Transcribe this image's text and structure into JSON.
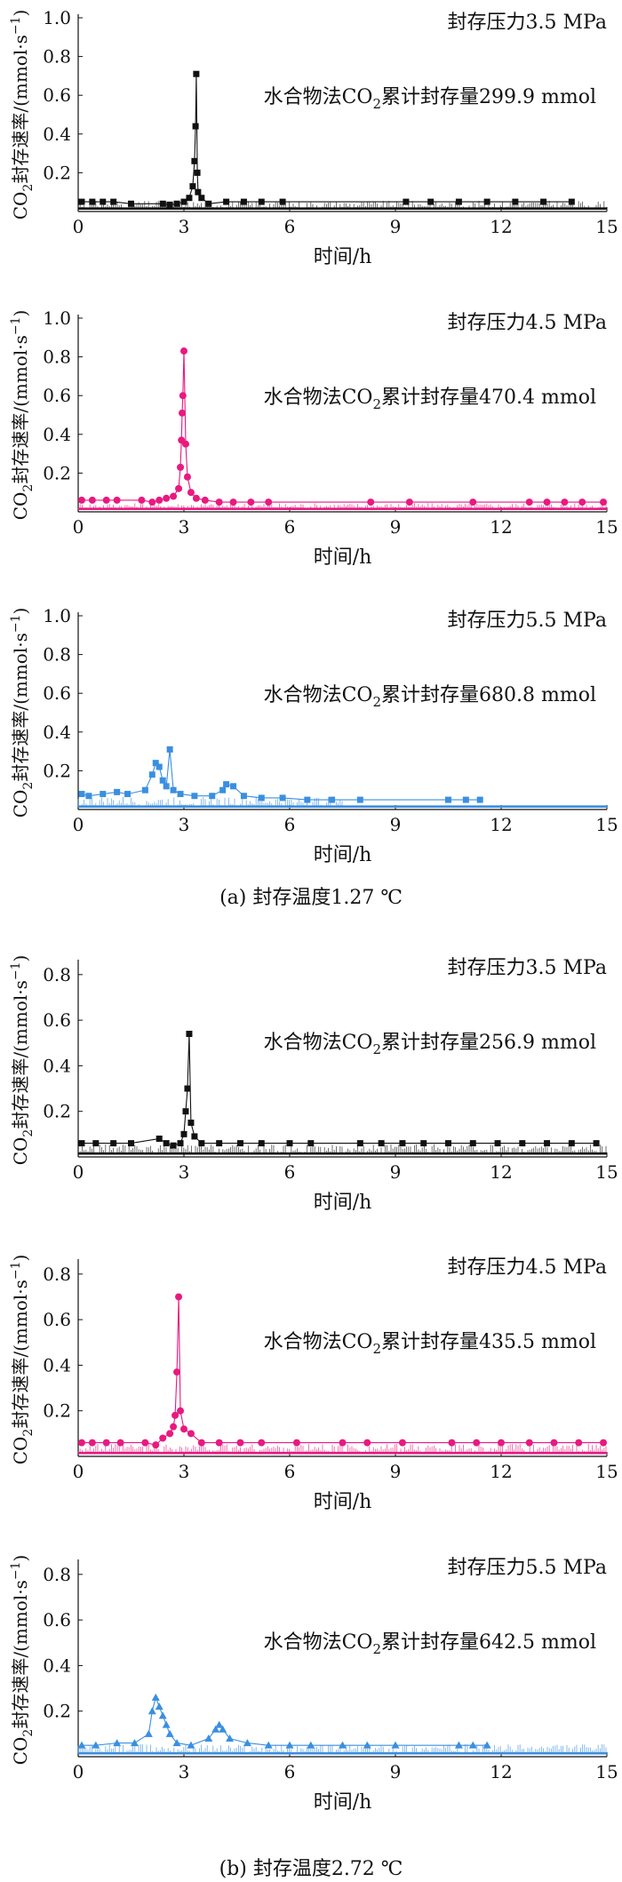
{
  "group_captions": [
    "(a) 封存温度1.27 ℃",
    "(b) 封存温度2.72 ℃"
  ],
  "colors": {
    "black": "#111111",
    "pink": "#e8197f",
    "blue": "#3a8fe0"
  },
  "chart_data": [
    {
      "type": "scatter",
      "group": "a",
      "marker": "square",
      "color": "#111111",
      "pressure_label": "封存压力3.5 MPa",
      "total_prefix": "水合物法CO",
      "total_sub": "2",
      "total_suffix": "累计封存量299.9 mmol",
      "xlabel": "时间/h",
      "ylabel_prefix": "CO",
      "ylabel_sub": "2",
      "ylabel_main": "封存速率/(mmol·s",
      "ylabel_sup": "−1",
      "ylabel_end": ")",
      "xlim": [
        0,
        15
      ],
      "ylim": [
        0,
        1.0
      ],
      "xticks": [
        0,
        3,
        6,
        9,
        12,
        15
      ],
      "yticks": [
        0.2,
        0.4,
        0.6,
        0.8,
        1.0
      ],
      "xtick_labels": [
        "0",
        "3",
        "6",
        "9",
        "12",
        "15"
      ],
      "ytick_labels": [
        "0.2",
        "0.4",
        "0.6",
        "0.8",
        "1.0"
      ],
      "series": [
        {
          "baseline": 0.015,
          "noise_level": 0.04,
          "noise_x": [
            [
              0,
              15
            ]
          ],
          "points": [
            [
              0.1,
              0.05
            ],
            [
              0.4,
              0.05
            ],
            [
              0.7,
              0.05
            ],
            [
              1.0,
              0.05
            ],
            [
              1.5,
              0.04
            ],
            [
              2.4,
              0.04
            ],
            [
              2.6,
              0.035
            ],
            [
              2.8,
              0.04
            ],
            [
              3.0,
              0.05
            ],
            [
              3.15,
              0.07
            ],
            [
              3.25,
              0.13
            ],
            [
              3.3,
              0.26
            ],
            [
              3.33,
              0.44
            ],
            [
              3.35,
              0.71
            ],
            [
              3.38,
              0.2
            ],
            [
              3.4,
              0.1
            ],
            [
              3.5,
              0.07
            ],
            [
              3.7,
              0.04
            ],
            [
              4.2,
              0.05
            ],
            [
              4.7,
              0.05
            ],
            [
              5.2,
              0.05
            ],
            [
              5.8,
              0.05
            ],
            [
              9.3,
              0.05
            ],
            [
              10.0,
              0.05
            ],
            [
              10.8,
              0.05
            ],
            [
              11.6,
              0.05
            ],
            [
              12.4,
              0.05
            ],
            [
              13.2,
              0.05
            ],
            [
              14.0,
              0.05
            ]
          ]
        }
      ]
    },
    {
      "type": "scatter",
      "group": "a",
      "marker": "circle",
      "color": "#e8197f",
      "pressure_label": "封存压力4.5 MPa",
      "total_prefix": "水合物法CO",
      "total_sub": "2",
      "total_suffix": "累计封存量470.4 mmol",
      "xlabel": "时间/h",
      "ylabel_prefix": "CO",
      "ylabel_sub": "2",
      "ylabel_main": "封存速率/(mmol·s",
      "ylabel_sup": "−1",
      "ylabel_end": ")",
      "xlim": [
        0,
        15
      ],
      "ylim": [
        0,
        1.0
      ],
      "xticks": [
        0,
        3,
        6,
        9,
        12,
        15
      ],
      "yticks": [
        0.2,
        0.4,
        0.6,
        0.8,
        1.0
      ],
      "xtick_labels": [
        "0",
        "3",
        "6",
        "9",
        "12",
        "15"
      ],
      "ytick_labels": [
        "0.2",
        "0.4",
        "0.6",
        "0.8",
        "1.0"
      ],
      "series": [
        {
          "baseline": 0.015,
          "noise_level": 0.03,
          "noise_x": [
            [
              0,
              15
            ]
          ],
          "points": [
            [
              0.1,
              0.06
            ],
            [
              0.4,
              0.06
            ],
            [
              0.8,
              0.06
            ],
            [
              1.1,
              0.06
            ],
            [
              1.8,
              0.06
            ],
            [
              2.1,
              0.05
            ],
            [
              2.3,
              0.06
            ],
            [
              2.5,
              0.07
            ],
            [
              2.7,
              0.08
            ],
            [
              2.85,
              0.12
            ],
            [
              2.9,
              0.23
            ],
            [
              2.93,
              0.37
            ],
            [
              2.95,
              0.51
            ],
            [
              2.97,
              0.6
            ],
            [
              3.0,
              0.83
            ],
            [
              3.05,
              0.35
            ],
            [
              3.1,
              0.18
            ],
            [
              3.2,
              0.1
            ],
            [
              3.35,
              0.07
            ],
            [
              3.6,
              0.06
            ],
            [
              4.0,
              0.05
            ],
            [
              4.4,
              0.05
            ],
            [
              4.9,
              0.05
            ],
            [
              5.4,
              0.05
            ],
            [
              8.3,
              0.05
            ],
            [
              9.4,
              0.05
            ],
            [
              11.2,
              0.05
            ],
            [
              12.8,
              0.05
            ],
            [
              13.3,
              0.05
            ],
            [
              13.8,
              0.05
            ],
            [
              14.3,
              0.05
            ],
            [
              14.9,
              0.05
            ]
          ]
        }
      ]
    },
    {
      "type": "scatter",
      "group": "a",
      "marker": "square",
      "color": "#3a8fe0",
      "pressure_label": "封存压力5.5 MPa",
      "total_prefix": "水合物法CO",
      "total_sub": "2",
      "total_suffix": "累计封存量680.8 mmol",
      "xlabel": "时间/h",
      "ylabel_prefix": "CO",
      "ylabel_sub": "2",
      "ylabel_main": "封存速率/(mmol·s",
      "ylabel_sup": "−1",
      "ylabel_end": ")",
      "xlim": [
        0,
        15
      ],
      "ylim": [
        0,
        1.0
      ],
      "xticks": [
        0,
        3,
        6,
        9,
        12,
        15
      ],
      "yticks": [
        0.2,
        0.4,
        0.6,
        0.8,
        1.0
      ],
      "xtick_labels": [
        "0",
        "3",
        "6",
        "9",
        "12",
        "15"
      ],
      "ytick_labels": [
        "0.2",
        "0.4",
        "0.6",
        "0.8",
        "1.0"
      ],
      "series": [
        {
          "baseline": 0.015,
          "noise_level": 0.05,
          "noise_x": [
            [
              0,
              7.5
            ]
          ],
          "points": [
            [
              0.1,
              0.08
            ],
            [
              0.3,
              0.07
            ],
            [
              0.7,
              0.08
            ],
            [
              1.1,
              0.09
            ],
            [
              1.4,
              0.08
            ],
            [
              1.9,
              0.1
            ],
            [
              2.1,
              0.18
            ],
            [
              2.2,
              0.24
            ],
            [
              2.3,
              0.22
            ],
            [
              2.4,
              0.15
            ],
            [
              2.5,
              0.12
            ],
            [
              2.6,
              0.31
            ],
            [
              2.7,
              0.1
            ],
            [
              2.9,
              0.08
            ],
            [
              3.3,
              0.07
            ],
            [
              3.8,
              0.07
            ],
            [
              4.1,
              0.1
            ],
            [
              4.2,
              0.13
            ],
            [
              4.4,
              0.12
            ],
            [
              4.7,
              0.07
            ],
            [
              5.2,
              0.06
            ],
            [
              5.8,
              0.06
            ],
            [
              6.5,
              0.05
            ],
            [
              7.2,
              0.05
            ],
            [
              8.0,
              0.05
            ],
            [
              10.5,
              0.05
            ],
            [
              11.0,
              0.05
            ],
            [
              11.4,
              0.05
            ]
          ]
        }
      ]
    },
    {
      "type": "scatter",
      "group": "b",
      "marker": "square",
      "color": "#111111",
      "pressure_label": "封存压力3.5 MPa",
      "total_prefix": "水合物法CO",
      "total_sub": "2",
      "total_suffix": "累计封存量256.9 mmol",
      "xlabel": "时间/h",
      "ylabel_prefix": "CO",
      "ylabel_sub": "2",
      "ylabel_main": "封存速率/(mmol·s",
      "ylabel_sup": "−1",
      "ylabel_end": ")",
      "xlim": [
        0,
        15
      ],
      "ylim": [
        0,
        0.85
      ],
      "xticks": [
        0,
        3,
        6,
        9,
        12,
        15
      ],
      "yticks": [
        0.2,
        0.4,
        0.6,
        0.8
      ],
      "xtick_labels": [
        "0",
        "3",
        "6",
        "9",
        "12",
        "15"
      ],
      "ytick_labels": [
        "0.2",
        "0.4",
        "0.6",
        "0.8"
      ],
      "series": [
        {
          "baseline": 0.015,
          "noise_level": 0.04,
          "noise_x": [
            [
              0,
              15
            ]
          ],
          "points": [
            [
              0.1,
              0.06
            ],
            [
              0.5,
              0.06
            ],
            [
              1.0,
              0.06
            ],
            [
              1.5,
              0.06
            ],
            [
              2.3,
              0.08
            ],
            [
              2.5,
              0.06
            ],
            [
              2.7,
              0.05
            ],
            [
              2.9,
              0.06
            ],
            [
              3.0,
              0.1
            ],
            [
              3.05,
              0.2
            ],
            [
              3.1,
              0.3
            ],
            [
              3.15,
              0.54
            ],
            [
              3.2,
              0.15
            ],
            [
              3.3,
              0.09
            ],
            [
              3.5,
              0.06
            ],
            [
              4.0,
              0.06
            ],
            [
              4.6,
              0.06
            ],
            [
              5.2,
              0.06
            ],
            [
              6.0,
              0.06
            ],
            [
              6.6,
              0.06
            ],
            [
              8.0,
              0.06
            ],
            [
              8.6,
              0.06
            ],
            [
              9.2,
              0.06
            ],
            [
              9.8,
              0.06
            ],
            [
              10.5,
              0.06
            ],
            [
              11.2,
              0.06
            ],
            [
              11.9,
              0.06
            ],
            [
              12.6,
              0.06
            ],
            [
              13.3,
              0.06
            ],
            [
              14.0,
              0.06
            ],
            [
              14.7,
              0.06
            ]
          ]
        }
      ]
    },
    {
      "type": "scatter",
      "group": "b",
      "marker": "circle",
      "color": "#e8197f",
      "pressure_label": "封存压力4.5 MPa",
      "total_prefix": "水合物法CO",
      "total_sub": "2",
      "total_suffix": "累计封存量435.5 mmol",
      "xlabel": "时间/h",
      "ylabel_prefix": "CO",
      "ylabel_sub": "2",
      "ylabel_main": "封存速率/(mmol·s",
      "ylabel_sup": "−1",
      "ylabel_end": ")",
      "xlim": [
        0,
        15
      ],
      "ylim": [
        0,
        0.85
      ],
      "xticks": [
        0,
        3,
        6,
        9,
        12,
        15
      ],
      "yticks": [
        0.2,
        0.4,
        0.6,
        0.8
      ],
      "xtick_labels": [
        "0",
        "3",
        "6",
        "9",
        "12",
        "15"
      ],
      "ytick_labels": [
        "0.2",
        "0.4",
        "0.6",
        "0.8"
      ],
      "series": [
        {
          "baseline": 0.015,
          "noise_level": 0.04,
          "noise_x": [
            [
              0,
              15
            ]
          ],
          "points": [
            [
              0.1,
              0.06
            ],
            [
              0.4,
              0.06
            ],
            [
              0.8,
              0.06
            ],
            [
              1.2,
              0.06
            ],
            [
              1.9,
              0.06
            ],
            [
              2.2,
              0.05
            ],
            [
              2.4,
              0.08
            ],
            [
              2.6,
              0.1
            ],
            [
              2.7,
              0.13
            ],
            [
              2.75,
              0.18
            ],
            [
              2.8,
              0.37
            ],
            [
              2.85,
              0.7
            ],
            [
              2.9,
              0.2
            ],
            [
              3.0,
              0.12
            ],
            [
              3.2,
              0.1
            ],
            [
              3.5,
              0.06
            ],
            [
              4.0,
              0.06
            ],
            [
              4.6,
              0.06
            ],
            [
              5.2,
              0.06
            ],
            [
              6.2,
              0.06
            ],
            [
              7.5,
              0.06
            ],
            [
              8.2,
              0.06
            ],
            [
              9.2,
              0.06
            ],
            [
              10.6,
              0.06
            ],
            [
              11.3,
              0.06
            ],
            [
              12.0,
              0.06
            ],
            [
              12.8,
              0.06
            ],
            [
              13.5,
              0.06
            ],
            [
              14.2,
              0.06
            ],
            [
              14.9,
              0.06
            ]
          ]
        }
      ]
    },
    {
      "type": "scatter",
      "group": "b",
      "marker": "triangle",
      "color": "#3a8fe0",
      "pressure_label": "封存压力5.5 MPa",
      "total_prefix": "水合物法CO",
      "total_sub": "2",
      "total_suffix": "累计封存量642.5 mmol",
      "xlabel": "时间/h",
      "ylabel_prefix": "CO",
      "ylabel_sub": "2",
      "ylabel_main": "封存速率/(mmol·s",
      "ylabel_sup": "−1",
      "ylabel_end": ")",
      "xlim": [
        0,
        15
      ],
      "ylim": [
        0,
        0.85
      ],
      "xticks": [
        0,
        3,
        6,
        9,
        12,
        15
      ],
      "yticks": [
        0.2,
        0.4,
        0.6,
        0.8
      ],
      "xtick_labels": [
        "0",
        "3",
        "6",
        "9",
        "12",
        "15"
      ],
      "ytick_labels": [
        "0.2",
        "0.4",
        "0.6",
        "0.8"
      ],
      "series": [
        {
          "baseline": 0.015,
          "noise_level": 0.04,
          "noise_x": [
            [
              0,
              15
            ]
          ],
          "points": [
            [
              0.1,
              0.05
            ],
            [
              0.5,
              0.05
            ],
            [
              1.1,
              0.06
            ],
            [
              1.6,
              0.06
            ],
            [
              2.0,
              0.1
            ],
            [
              2.1,
              0.2
            ],
            [
              2.2,
              0.26
            ],
            [
              2.3,
              0.22
            ],
            [
              2.4,
              0.18
            ],
            [
              2.5,
              0.14
            ],
            [
              2.6,
              0.1
            ],
            [
              2.8,
              0.06
            ],
            [
              3.2,
              0.05
            ],
            [
              3.7,
              0.08
            ],
            [
              3.9,
              0.12
            ],
            [
              4.0,
              0.14
            ],
            [
              4.1,
              0.12
            ],
            [
              4.3,
              0.08
            ],
            [
              4.8,
              0.06
            ],
            [
              5.4,
              0.05
            ],
            [
              6.0,
              0.05
            ],
            [
              6.6,
              0.05
            ],
            [
              7.5,
              0.05
            ],
            [
              8.2,
              0.05
            ],
            [
              9.0,
              0.05
            ],
            [
              10.8,
              0.05
            ],
            [
              11.2,
              0.05
            ],
            [
              11.6,
              0.05
            ]
          ]
        }
      ]
    }
  ]
}
